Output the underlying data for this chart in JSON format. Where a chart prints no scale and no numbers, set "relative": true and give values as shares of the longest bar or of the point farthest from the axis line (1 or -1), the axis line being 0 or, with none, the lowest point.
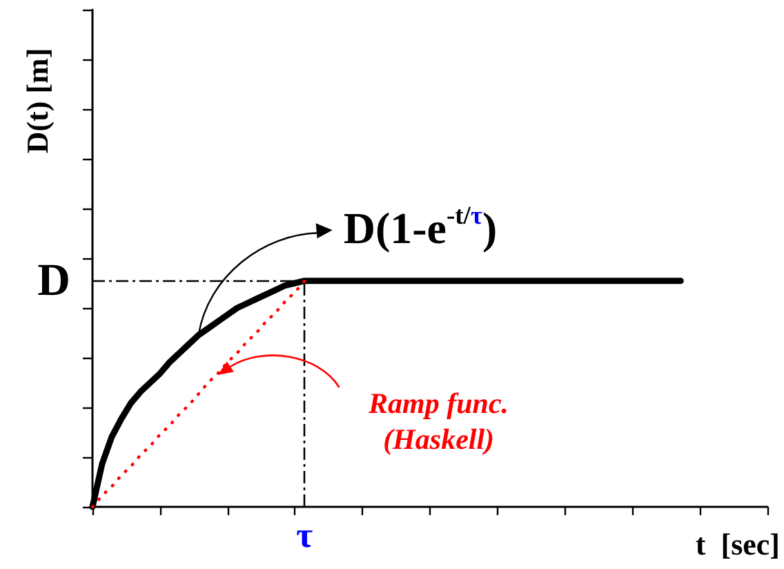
{
  "chart_data": {
    "type": "line",
    "relative": true,
    "xlabel": "t  [sec]",
    "ylabel": "D(t) [m]",
    "categories": [
      null,
      null,
      null,
      null,
      null,
      null,
      null,
      null,
      null,
      null,
      null,
      null,
      null,
      null,
      null,
      null,
      null,
      null,
      null,
      null,
      null,
      null,
      null,
      null,
      null,
      null,
      null,
      null,
      null,
      null,
      null,
      null,
      null,
      null,
      null,
      null,
      null,
      null,
      null,
      null,
      null,
      null,
      null,
      null,
      null,
      null,
      null,
      null,
      null,
      null,
      null,
      null,
      null,
      null,
      null,
      null,
      null,
      null,
      null,
      null,
      null,
      null,
      null,
      null,
      null,
      null,
      null,
      null,
      null,
      null,
      null
    ],
    "series": [
      {
        "name": "D(1-e$^{-t/τ}$)",
        "color": "#000000",
        "values": [
          0,
          0.19,
          0.31,
          0.39,
          0.46,
          0.51,
          0.55,
          0.59,
          0.64,
          0.68,
          0.72,
          0.76,
          0.79,
          0.82,
          0.85,
          0.88,
          0.9,
          0.92,
          0.94,
          0.96,
          0.98,
          0.99,
          1,
          1,
          1,
          1,
          1,
          1,
          1,
          1,
          1,
          1,
          1,
          1,
          1,
          1,
          1,
          1,
          1,
          1,
          1,
          1,
          1,
          1,
          1,
          1,
          1,
          1,
          1,
          1,
          1,
          1,
          1,
          1,
          1,
          1,
          1,
          1,
          1,
          1,
          1,
          1,
          null,
          null,
          null,
          null,
          null,
          null,
          null,
          null,
          null
        ]
      },
      {
        "name": "Ramp func. (Haskell)",
        "color": "#ff0000",
        "line_style": "dotted",
        "values": [
          0,
          0.05,
          0.09,
          0.14,
          0.18,
          0.23,
          0.27,
          0.32,
          0.36,
          0.41,
          0.45,
          0.5,
          0.55,
          0.59,
          0.64,
          0.68,
          0.73,
          0.77,
          0.82,
          0.86,
          0.91,
          0.95,
          1,
          null,
          null,
          null,
          null,
          null,
          null,
          null,
          null,
          null,
          null,
          null,
          null,
          null,
          null,
          null,
          null,
          null,
          null,
          null,
          null,
          null,
          null,
          null,
          null,
          null,
          null,
          null,
          null,
          null,
          null,
          null,
          null,
          null,
          null,
          null,
          null,
          null,
          null,
          null,
          null,
          null,
          null,
          null,
          null,
          null,
          null,
          null,
          null
        ]
      }
    ],
    "ref_lines": [
      {
        "axis": "y",
        "value": 1,
        "label": "D",
        "color": "#000000",
        "line_style": "dashed"
      }
    ],
    "annotations": [
      "τ"
    ]
  }
}
